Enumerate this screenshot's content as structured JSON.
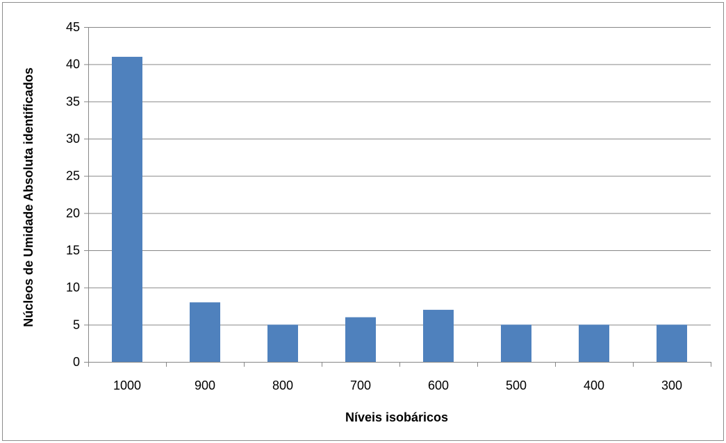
{
  "chart_data": {
    "type": "bar",
    "title": "",
    "xlabel": "Níveis isobáricos",
    "ylabel": "Núcleos de Umidade Absoluta identificados",
    "categories": [
      "1000",
      "900",
      "800",
      "700",
      "600",
      "500",
      "400",
      "300"
    ],
    "values": [
      41,
      8,
      5,
      6,
      7,
      5,
      5,
      5
    ],
    "ylim": [
      0,
      45
    ],
    "yticks": [
      0,
      5,
      10,
      15,
      20,
      25,
      30,
      35,
      40,
      45
    ],
    "grid": true,
    "legend": "none",
    "bar_color": "#4f81bd",
    "grid_color": "#868686"
  }
}
